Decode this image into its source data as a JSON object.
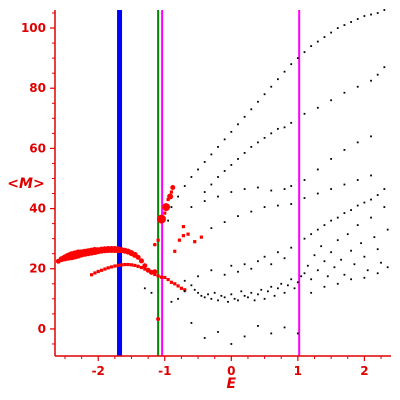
{
  "chart_data": {
    "type": "scatter",
    "xlabel": "E",
    "ylabel": "<M>",
    "xlim": [
      -2.65,
      2.4
    ],
    "ylim": [
      -9,
      106
    ],
    "x_ticks": [
      -2,
      -1,
      0,
      1,
      2
    ],
    "y_ticks": [
      0,
      20,
      40,
      60,
      80,
      100
    ],
    "grid": false,
    "colors": {
      "axis": "#e00000",
      "small_points": "#000000",
      "large_points": "#ff0000",
      "blue_line": "#0000ff",
      "green_line": "#008800",
      "magenta_line": "#ff00ff"
    },
    "vertical_lines": [
      {
        "x": -1.68,
        "color": "#0000ff",
        "width": 5
      },
      {
        "x": -1.1,
        "color": "#008800",
        "width": 2
      },
      {
        "x": -1.04,
        "color": "#ff00ff",
        "width": 2
      },
      {
        "x": 1.02,
        "color": "#ff00ff",
        "width": 2
      }
    ],
    "series": [
      {
        "marker": "red-circles",
        "points": [
          [
            -2.6,
            22.5,
            2.5
          ],
          [
            -2.55,
            23.2,
            3.0
          ],
          [
            -2.5,
            23.6,
            3.5
          ],
          [
            -2.45,
            24.0,
            4.0
          ],
          [
            -2.4,
            24.3,
            4.5
          ],
          [
            -2.35,
            24.6,
            4.5
          ],
          [
            -2.3,
            24.9,
            4.5
          ],
          [
            -2.25,
            25.1,
            4.0
          ],
          [
            -2.2,
            25.3,
            4.0
          ],
          [
            -2.15,
            25.5,
            4.0
          ],
          [
            -2.1,
            25.7,
            4.0
          ],
          [
            -2.05,
            25.9,
            4.0
          ],
          [
            -2.0,
            26.0,
            3.5
          ],
          [
            -1.95,
            26.2,
            3.5
          ],
          [
            -1.9,
            26.3,
            3.5
          ],
          [
            -1.85,
            26.4,
            3.5
          ],
          [
            -1.8,
            26.4,
            3.5
          ],
          [
            -1.75,
            26.4,
            3.5
          ],
          [
            -1.7,
            26.3,
            3.5
          ],
          [
            -1.65,
            26.2,
            3.0
          ],
          [
            -1.6,
            26.0,
            3.0
          ],
          [
            -1.55,
            25.7,
            3.0
          ],
          [
            -1.5,
            25.2,
            3.0
          ],
          [
            -1.45,
            24.6,
            3.0
          ],
          [
            -1.4,
            23.8,
            2.5
          ],
          [
            -1.35,
            22.6,
            2.5
          ],
          [
            -1.3,
            21.0,
            2.5
          ],
          [
            -1.25,
            19.5,
            2.5
          ],
          [
            -1.2,
            18.8,
            2.5
          ],
          [
            -1.15,
            19.0,
            2.5
          ],
          [
            -1.05,
            36.5,
            4.5
          ],
          [
            -0.98,
            40.5,
            4.0
          ],
          [
            -0.92,
            44.0,
            3.0
          ],
          [
            -0.88,
            47.0,
            2.5
          ],
          [
            -1.1,
            3.3,
            2.0
          ],
          [
            -1.15,
            28.0,
            1.8
          ]
        ]
      },
      {
        "marker": "red-squares",
        "points": [
          [
            -2.1,
            18.0
          ],
          [
            -2.05,
            18.6
          ],
          [
            -2.0,
            19.1
          ],
          [
            -1.95,
            19.5
          ],
          [
            -1.9,
            19.9
          ],
          [
            -1.85,
            20.3
          ],
          [
            -1.8,
            20.6
          ],
          [
            -1.75,
            20.9
          ],
          [
            -1.7,
            21.1
          ],
          [
            -1.65,
            21.3
          ],
          [
            -1.6,
            21.4
          ],
          [
            -1.55,
            21.4
          ],
          [
            -1.5,
            21.3
          ],
          [
            -1.45,
            21.1
          ],
          [
            -1.4,
            20.8
          ],
          [
            -1.35,
            20.4
          ],
          [
            -1.3,
            19.9
          ],
          [
            -1.25,
            19.3
          ],
          [
            -1.2,
            18.7
          ],
          [
            -1.15,
            18.1
          ],
          [
            -1.1,
            17.6
          ],
          [
            -1.05,
            17.2
          ],
          [
            -1.0,
            17.1
          ],
          [
            -0.95,
            16.4
          ],
          [
            -0.9,
            15.5
          ],
          [
            -0.85,
            15.0
          ],
          [
            -0.8,
            14.3
          ],
          [
            -0.75,
            13.5
          ],
          [
            -0.7,
            13.0
          ],
          [
            -0.85,
            25.8
          ],
          [
            -0.78,
            29.5
          ],
          [
            -0.72,
            34.0
          ],
          [
            -0.72,
            31.0
          ],
          [
            -0.65,
            31.5
          ],
          [
            -0.55,
            29.0
          ],
          [
            -0.45,
            30.5
          ],
          [
            -1.1,
            29.5
          ],
          [
            -1.0,
            38.5
          ],
          [
            -0.95,
            43.0
          ],
          [
            -0.9,
            45.5
          ]
        ]
      },
      {
        "marker": "black-dots",
        "points": [
          [
            -0.95,
            36.0
          ],
          [
            -0.9,
            40.5
          ],
          [
            -0.8,
            44.0
          ],
          [
            -0.7,
            47.5
          ],
          [
            -0.6,
            50.5
          ],
          [
            -0.5,
            53.0
          ],
          [
            -0.4,
            55.5
          ],
          [
            -0.3,
            58.0
          ],
          [
            -0.2,
            60.5
          ],
          [
            -0.1,
            63.0
          ],
          [
            0.0,
            65.5
          ],
          [
            0.1,
            68.0
          ],
          [
            0.2,
            70.5
          ],
          [
            0.3,
            73.0
          ],
          [
            0.4,
            75.5
          ],
          [
            0.5,
            78.0
          ],
          [
            0.6,
            80.5
          ],
          [
            0.7,
            83.0
          ],
          [
            0.8,
            85.5
          ],
          [
            0.9,
            88.0
          ],
          [
            1.0,
            90.0
          ],
          [
            1.1,
            92.0
          ],
          [
            1.2,
            94.0
          ],
          [
            1.3,
            95.5
          ],
          [
            1.4,
            97.0
          ],
          [
            1.5,
            98.5
          ],
          [
            1.6,
            100.0
          ],
          [
            1.7,
            101.0
          ],
          [
            1.8,
            102.0
          ],
          [
            1.9,
            103.0
          ],
          [
            2.0,
            104.0
          ],
          [
            2.1,
            104.5
          ],
          [
            2.2,
            105.0
          ],
          [
            2.3,
            106.0
          ],
          [
            -0.4,
            45.5
          ],
          [
            -0.3,
            48.0
          ],
          [
            -0.2,
            50.5
          ],
          [
            -0.1,
            52.5
          ],
          [
            0.0,
            54.5
          ],
          [
            0.1,
            56.5
          ],
          [
            0.2,
            58.5
          ],
          [
            0.3,
            60.5
          ],
          [
            0.4,
            62.0
          ],
          [
            0.5,
            63.5
          ],
          [
            0.6,
            65.0
          ],
          [
            0.7,
            66.5
          ],
          [
            0.8,
            67.0
          ],
          [
            0.9,
            68.5
          ],
          [
            1.1,
            71.5
          ],
          [
            1.3,
            73.5
          ],
          [
            1.5,
            76.0
          ],
          [
            1.7,
            78.5
          ],
          [
            1.9,
            80.5
          ],
          [
            2.1,
            82.5
          ],
          [
            2.2,
            84.5
          ],
          [
            2.3,
            87.0
          ],
          [
            -0.6,
            40.5
          ],
          [
            -0.4,
            42.5
          ],
          [
            -0.2,
            44.0
          ],
          [
            0.0,
            45.5
          ],
          [
            0.2,
            46.5
          ],
          [
            0.4,
            47.0
          ],
          [
            0.6,
            46.0
          ],
          [
            0.8,
            46.5
          ],
          [
            0.9,
            47.5
          ],
          [
            1.1,
            49.5
          ],
          [
            1.3,
            53.0
          ],
          [
            1.5,
            56.5
          ],
          [
            1.7,
            59.5
          ],
          [
            1.9,
            62.0
          ],
          [
            2.1,
            64.0
          ],
          [
            -0.3,
            33.5
          ],
          [
            -0.1,
            35.5
          ],
          [
            0.1,
            37.5
          ],
          [
            0.3,
            39.0
          ],
          [
            0.5,
            40.5
          ],
          [
            0.7,
            41.0
          ],
          [
            0.9,
            41.5
          ],
          [
            1.1,
            43.5
          ],
          [
            1.3,
            45.0
          ],
          [
            1.5,
            46.5
          ],
          [
            1.7,
            48.0
          ],
          [
            1.9,
            49.5
          ],
          [
            2.1,
            51.0
          ],
          [
            -0.6,
            14.5
          ],
          [
            -0.55,
            13.0
          ],
          [
            -0.5,
            12.0
          ],
          [
            -0.45,
            11.0
          ],
          [
            -0.4,
            10.5
          ],
          [
            -0.35,
            11.5
          ],
          [
            -0.3,
            10.0
          ],
          [
            -0.25,
            12.0
          ],
          [
            -0.2,
            9.5
          ],
          [
            -0.15,
            11.0
          ],
          [
            -0.1,
            10.5
          ],
          [
            -0.05,
            9.0
          ],
          [
            0.0,
            11.5
          ],
          [
            0.05,
            10.0
          ],
          [
            0.1,
            9.5
          ],
          [
            0.15,
            12.5
          ],
          [
            0.2,
            11.0
          ],
          [
            0.25,
            10.5
          ],
          [
            0.3,
            12.0
          ],
          [
            0.35,
            9.5
          ],
          [
            0.4,
            11.5
          ],
          [
            0.45,
            13.0
          ],
          [
            0.5,
            10.0
          ],
          [
            0.55,
            12.5
          ],
          [
            0.6,
            14.0
          ],
          [
            0.65,
            11.0
          ],
          [
            0.7,
            13.5
          ],
          [
            0.75,
            15.0
          ],
          [
            0.8,
            12.0
          ],
          [
            0.85,
            14.5
          ],
          [
            0.9,
            16.5
          ],
          [
            0.95,
            13.5
          ],
          [
            1.0,
            15.5
          ],
          [
            1.05,
            17.5
          ],
          [
            -0.7,
            16.0
          ],
          [
            -0.5,
            17.5
          ],
          [
            -0.3,
            19.5
          ],
          [
            -0.1,
            18.0
          ],
          [
            0.0,
            21.0
          ],
          [
            0.1,
            19.0
          ],
          [
            0.2,
            21.5
          ],
          [
            0.3,
            20.0
          ],
          [
            0.4,
            22.5
          ],
          [
            0.5,
            24.0
          ],
          [
            0.6,
            21.5
          ],
          [
            0.7,
            25.5
          ],
          [
            0.8,
            23.5
          ],
          [
            0.9,
            27.0
          ],
          [
            1.1,
            18.5
          ],
          [
            1.15,
            21.0
          ],
          [
            1.2,
            16.5
          ],
          [
            1.25,
            24.5
          ],
          [
            1.3,
            19.5
          ],
          [
            1.35,
            27.5
          ],
          [
            1.4,
            22.5
          ],
          [
            1.45,
            17.5
          ],
          [
            1.5,
            25.5
          ],
          [
            1.55,
            20.5
          ],
          [
            1.6,
            29.5
          ],
          [
            1.65,
            23.0
          ],
          [
            1.7,
            18.0
          ],
          [
            1.75,
            31.5
          ],
          [
            1.8,
            26.0
          ],
          [
            1.85,
            21.5
          ],
          [
            1.9,
            34.5
          ],
          [
            1.95,
            28.5
          ],
          [
            2.0,
            24.0
          ],
          [
            2.05,
            19.5
          ],
          [
            2.1,
            37.0
          ],
          [
            2.15,
            30.5
          ],
          [
            2.2,
            26.5
          ],
          [
            2.25,
            22.0
          ],
          [
            2.3,
            40.5
          ],
          [
            2.35,
            33.0
          ],
          [
            2.35,
            20.5
          ],
          [
            1.1,
            30.0
          ],
          [
            1.2,
            31.5
          ],
          [
            1.3,
            33.0
          ],
          [
            1.4,
            34.5
          ],
          [
            1.5,
            36.0
          ],
          [
            1.6,
            37.0
          ],
          [
            1.7,
            38.5
          ],
          [
            1.8,
            39.5
          ],
          [
            1.9,
            41.0
          ],
          [
            2.0,
            42.0
          ],
          [
            2.1,
            43.0
          ],
          [
            2.2,
            44.5
          ],
          [
            2.3,
            46.5
          ],
          [
            1.2,
            12.0
          ],
          [
            1.4,
            14.0
          ],
          [
            1.6,
            15.0
          ],
          [
            1.8,
            16.5
          ],
          [
            2.0,
            17.0
          ],
          [
            2.2,
            18.5
          ],
          [
            -0.6,
            2.0
          ],
          [
            -0.4,
            -3.0
          ],
          [
            -0.2,
            -1.0
          ],
          [
            0.0,
            -5.0
          ],
          [
            0.2,
            -2.5
          ],
          [
            0.4,
            1.0
          ],
          [
            0.6,
            -1.5
          ],
          [
            0.8,
            0.5
          ],
          [
            1.0,
            -1.5
          ],
          [
            -0.9,
            9.0
          ],
          [
            -0.8,
            10.0
          ],
          [
            -0.7,
            12.5
          ],
          [
            -1.3,
            13.5
          ],
          [
            -1.2,
            12.0
          ]
        ]
      }
    ]
  }
}
